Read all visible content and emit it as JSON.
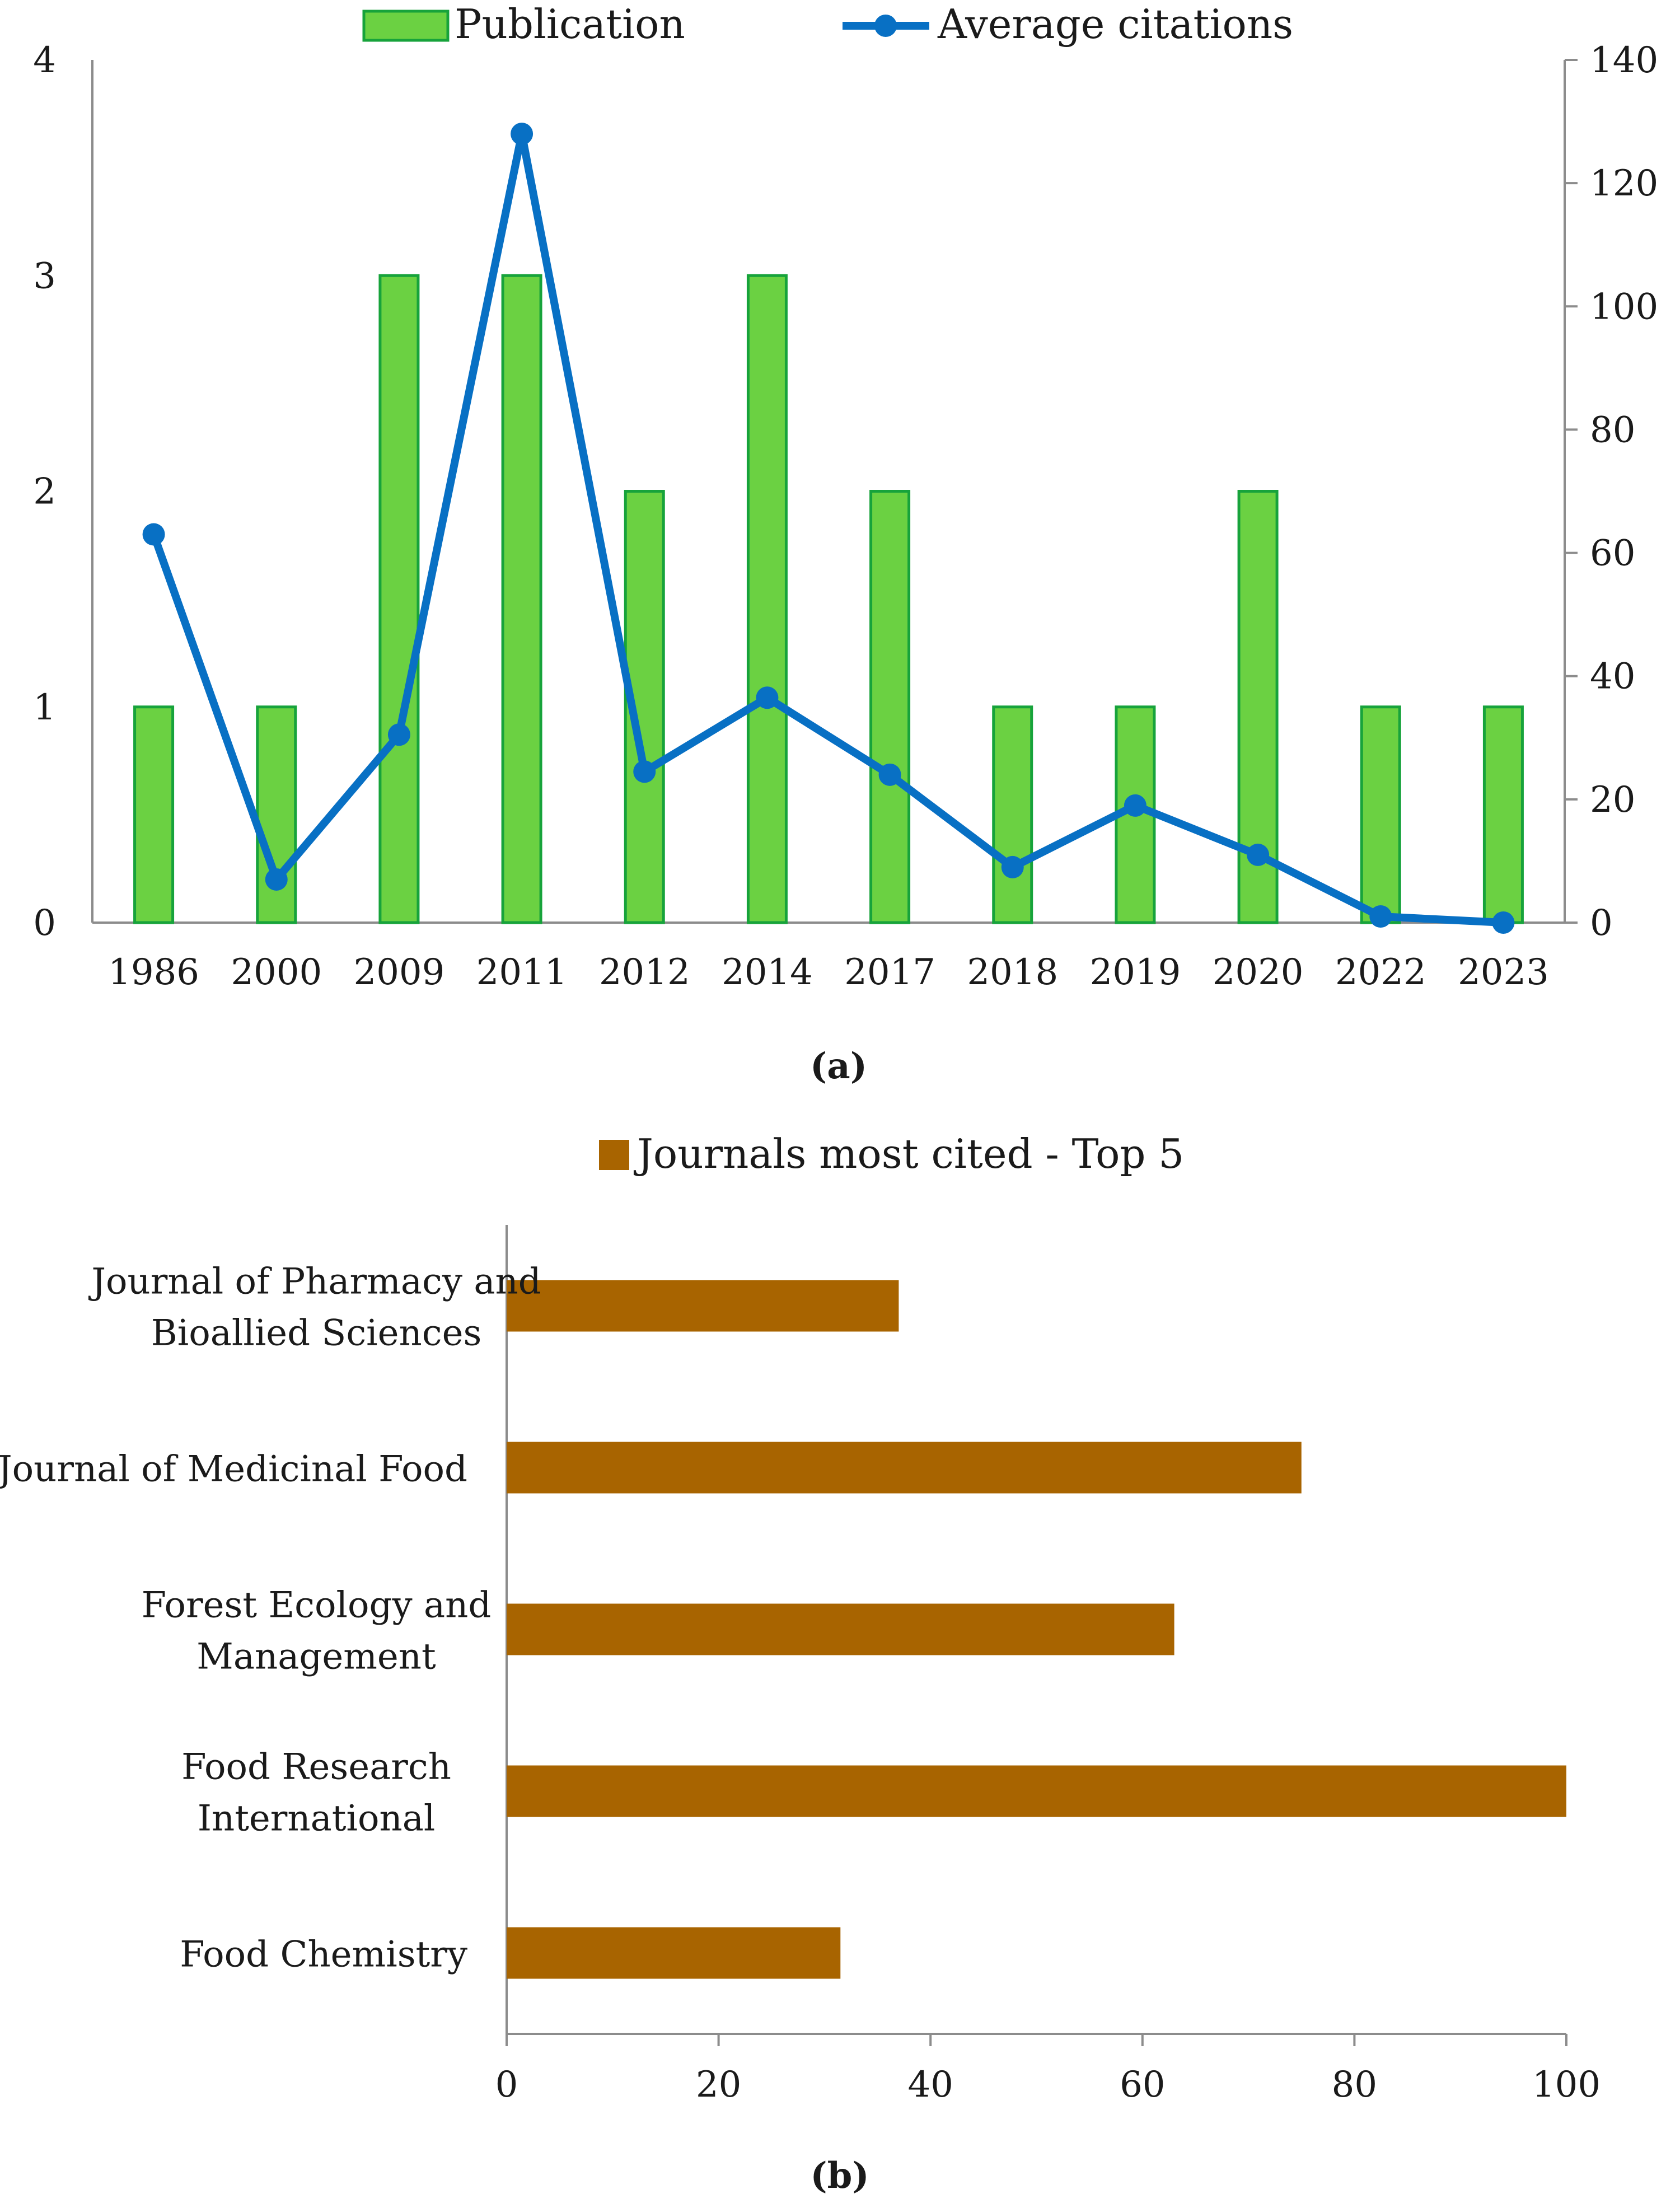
{
  "colors": {
    "pub_fill": "#6bd142",
    "pub_stroke": "#17a33b",
    "citations_line": "#0870c4",
    "journal_bar": "#a86400",
    "axis": "#8c8c8c"
  },
  "panels": {
    "a": {
      "label": "(a)"
    },
    "b": {
      "label": "(b)"
    }
  },
  "chart_data": [
    {
      "type": "bar",
      "panel": "a",
      "categories": [
        "1986",
        "2000",
        "2009",
        "2011",
        "2012",
        "2014",
        "2017",
        "2018",
        "2019",
        "2020",
        "2022",
        "2023"
      ],
      "series": [
        {
          "name": "Publication",
          "type": "bar",
          "axis": "left",
          "values": [
            1,
            1,
            3,
            3,
            2,
            3,
            2,
            1,
            1,
            2,
            1,
            1
          ]
        },
        {
          "name": "Average citations",
          "type": "line",
          "axis": "right",
          "values": [
            63,
            7,
            30.5,
            128,
            24.5,
            36.5,
            24,
            9,
            19,
            11,
            1,
            0
          ]
        }
      ],
      "ylim_left": [
        0,
        4
      ],
      "yticks_left": [
        "0",
        "1",
        "2",
        "3",
        "4"
      ],
      "ylim_right": [
        0,
        140
      ],
      "yticks_right": [
        "0",
        "20",
        "40",
        "60",
        "80",
        "100",
        "120",
        "140"
      ],
      "legend": [
        "Publication",
        "Average citations"
      ],
      "legend_position": "top-center",
      "grid": false
    },
    {
      "type": "bar",
      "orientation": "horizontal",
      "panel": "b",
      "series_name": "Journals most cited - Top 5",
      "categories": [
        [
          "Journal of Pharmacy and",
          "Bioallied Sciences"
        ],
        [
          "Journal of Medicinal Food"
        ],
        [
          "Forest Ecology and",
          "Management"
        ],
        [
          "Food Research",
          "International"
        ],
        [
          "Food Chemistry"
        ]
      ],
      "values": [
        37,
        75,
        63,
        100,
        31.5
      ],
      "xlim": [
        0,
        100
      ],
      "xticks": [
        "0",
        "20",
        "40",
        "60",
        "80",
        "100"
      ],
      "legend_position": "top-center",
      "grid": false
    }
  ]
}
